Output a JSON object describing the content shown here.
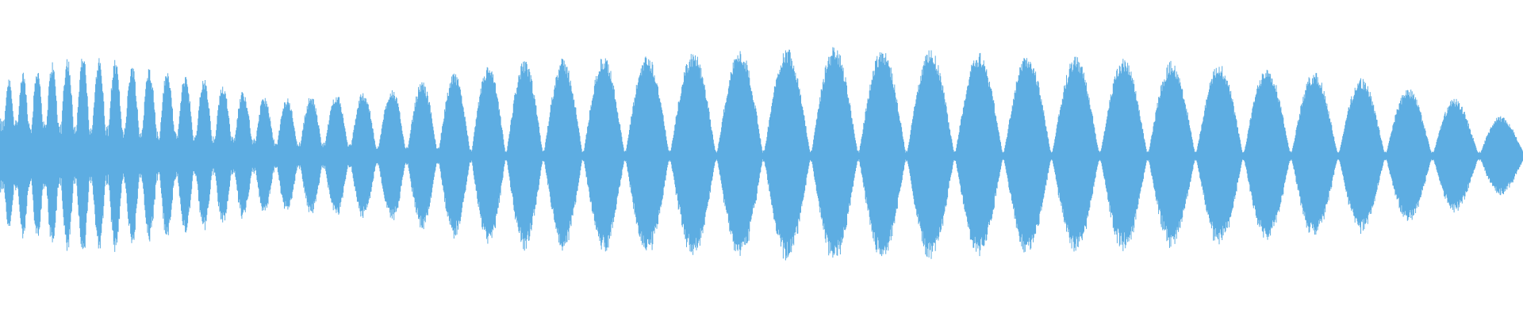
{
  "waveform": {
    "color": "#5dade2"
  }
}
